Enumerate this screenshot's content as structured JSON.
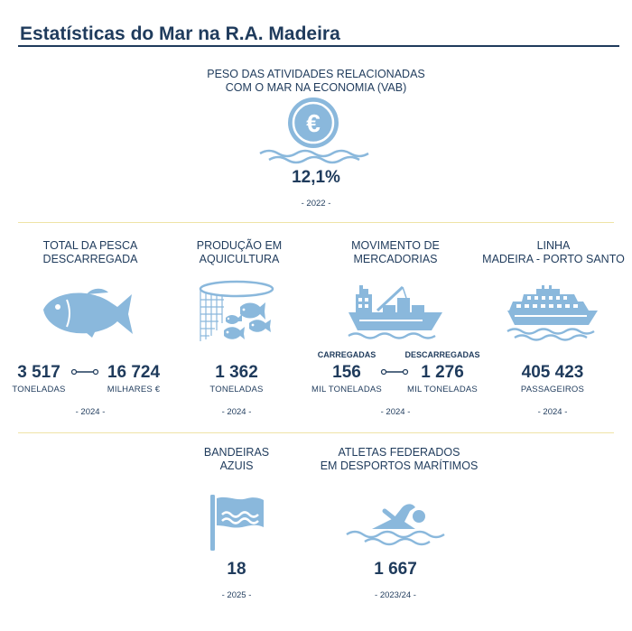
{
  "page": {
    "title": "Estatísticas do Mar na R.A. Madeira"
  },
  "vab": {
    "label_line1": "PESO DAS ATIVIDADES RELACIONADAS",
    "label_line2": "COM O MAR NA ECONOMIA (VAB)",
    "value": "12,1%",
    "year": "- 2022 -",
    "icon": "euro-coin-icon",
    "symbol": "€"
  },
  "pesca": {
    "label_line1": "TOTAL DA PESCA",
    "label_line2": "DESCARREGADA",
    "value1": "3 517",
    "unit1": "TONELADAS",
    "value2": "16 724",
    "unit2": "MILHARES €",
    "year": "- 2024 -",
    "icon": "fish-icon"
  },
  "aquicultura": {
    "label_line1": "PRODUÇÃO EM",
    "label_line2": "AQUICULTURA",
    "value": "1 362",
    "unit": "TONELADAS",
    "year": "- 2024 -",
    "icon": "fish-net-icon"
  },
  "mercadorias": {
    "label_line1": "MOVIMENTO DE",
    "label_line2": "MERCADORIAS",
    "head1": "CARREGADAS",
    "value1": "156",
    "unit1": "MIL TONELADAS",
    "head2": "DESCARREGADAS",
    "value2": "1 276",
    "unit2": "MIL TONELADAS",
    "year": "- 2024 -",
    "icon": "cargo-ship-icon"
  },
  "linha": {
    "label_line1": "LINHA",
    "label_line2": "MADEIRA - PORTO SANTO",
    "value": "405 423",
    "unit": "PASSAGEIROS",
    "year": "- 2024 -",
    "icon": "ferry-icon"
  },
  "bandeiras": {
    "label_line1": "BANDEIRAS",
    "label_line2": "AZUIS",
    "value": "18",
    "year": "- 2025 -",
    "icon": "blue-flag-icon"
  },
  "atletas": {
    "label_line1": "ATLETAS FEDERADOS",
    "label_line2": "EM DESPORTOS MARÍTIMOS",
    "value": "1 667",
    "year": "- 2023/24 -",
    "icon": "swimmer-icon"
  },
  "colors": {
    "text": "#1f3b5c",
    "icon": "#8ab8dc",
    "separator": "#efe3a6"
  }
}
